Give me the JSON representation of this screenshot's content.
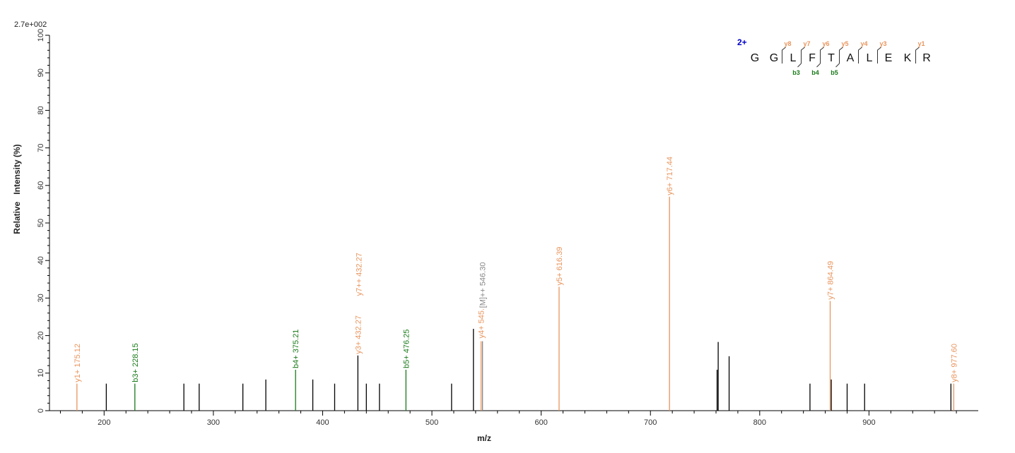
{
  "chart_data": {
    "type": "bar",
    "subtype": "mass-spectrum",
    "title": "",
    "scale_label": "2.7e+002",
    "xlabel": "m/z",
    "ylabel": "Relative   Intensity (%)",
    "xlim": [
      150,
      1000
    ],
    "ylim": [
      0,
      100
    ],
    "x_ticks": [
      200,
      300,
      400,
      500,
      600,
      700,
      800,
      900
    ],
    "y_ticks": [
      0,
      10,
      20,
      30,
      40,
      50,
      60,
      70,
      80,
      90,
      100
    ],
    "colors": {
      "y": "#e8955e",
      "b": "#1a7a1a",
      "M": "#888888",
      "other": "#000000",
      "charge": "#0000cc"
    },
    "peaks": [
      {
        "mz": 175.12,
        "intensity": 7.2,
        "type": "y",
        "label": "y1+ 175.12"
      },
      {
        "mz": 202.0,
        "intensity": 7.2,
        "type": "other",
        "label": ""
      },
      {
        "mz": 228.15,
        "intensity": 7.2,
        "type": "b",
        "label": "b3+ 228.15"
      },
      {
        "mz": 273.0,
        "intensity": 7.2,
        "type": "other",
        "label": ""
      },
      {
        "mz": 287.0,
        "intensity": 7.2,
        "type": "other",
        "label": ""
      },
      {
        "mz": 327.0,
        "intensity": 7.2,
        "type": "other",
        "label": ""
      },
      {
        "mz": 348.0,
        "intensity": 8.3,
        "type": "other",
        "label": ""
      },
      {
        "mz": 375.21,
        "intensity": 10.9,
        "type": "b",
        "label": "b4+ 375.21"
      },
      {
        "mz": 391.0,
        "intensity": 8.3,
        "type": "other",
        "label": ""
      },
      {
        "mz": 411.0,
        "intensity": 7.2,
        "type": "other",
        "label": ""
      },
      {
        "mz": 432.27,
        "intensity": 14.7,
        "type": "other",
        "label": "y3+ 432.27",
        "label_color": "y"
      },
      {
        "mz": 432.9,
        "intensity": 14.7,
        "type": "none",
        "label": "y7++ 432.27",
        "label_color": "y",
        "label_y": 30.2
      },
      {
        "mz": 440.0,
        "intensity": 7.2,
        "type": "other",
        "label": ""
      },
      {
        "mz": 452.0,
        "intensity": 7.2,
        "type": "other",
        "label": ""
      },
      {
        "mz": 476.25,
        "intensity": 10.9,
        "type": "b",
        "label": "b5+ 476.25"
      },
      {
        "mz": 518.0,
        "intensity": 7.2,
        "type": "other",
        "label": ""
      },
      {
        "mz": 538.0,
        "intensity": 21.8,
        "type": "other",
        "label": ""
      },
      {
        "mz": 545.0,
        "intensity": 18.5,
        "type": "y",
        "label": "y4+ 545.",
        "label_y": 18.9
      },
      {
        "mz": 546.3,
        "intensity": 18.5,
        "type": "M",
        "label": "[M]++ 546.30",
        "label_y": 27.0
      },
      {
        "mz": 616.39,
        "intensity": 33.0,
        "type": "y",
        "label": "y5+ 616.39"
      },
      {
        "mz": 717.44,
        "intensity": 57.0,
        "type": "y",
        "label": "y6+ 717.44"
      },
      {
        "mz": 761.0,
        "intensity": 10.9,
        "type": "other",
        "label": ""
      },
      {
        "mz": 762.0,
        "intensity": 18.3,
        "type": "other",
        "label": ""
      },
      {
        "mz": 772.0,
        "intensity": 14.5,
        "type": "other",
        "label": ""
      },
      {
        "mz": 846.0,
        "intensity": 7.2,
        "type": "other",
        "label": ""
      },
      {
        "mz": 864.49,
        "intensity": 29.2,
        "type": "y",
        "label": "y7+ 864.49"
      },
      {
        "mz": 865.5,
        "intensity": 8.3,
        "type": "other",
        "label": ""
      },
      {
        "mz": 880.0,
        "intensity": 7.2,
        "type": "other",
        "label": ""
      },
      {
        "mz": 896.0,
        "intensity": 7.2,
        "type": "other",
        "label": ""
      },
      {
        "mz": 975.0,
        "intensity": 7.2,
        "type": "other",
        "label": ""
      },
      {
        "mz": 977.6,
        "intensity": 7.2,
        "type": "y",
        "label": "y8+ 977.60"
      }
    ],
    "peptide": {
      "charge": "2+",
      "residues": [
        "G",
        "G",
        "L",
        "F",
        "T",
        "A",
        "L",
        "E",
        "K",
        "R"
      ],
      "y_ions": [
        {
          "label": "y8",
          "after": 1
        },
        {
          "label": "y7",
          "after": 2
        },
        {
          "label": "y6",
          "after": 3
        },
        {
          "label": "y5",
          "after": 4
        },
        {
          "label": "y4",
          "after": 5
        },
        {
          "label": "y3",
          "after": 6
        },
        {
          "label": "y1",
          "after": 8
        }
      ],
      "b_ions": [
        {
          "label": "b3",
          "after": 2
        },
        {
          "label": "b4",
          "after": 3
        },
        {
          "label": "b5",
          "after": 4
        }
      ]
    }
  }
}
